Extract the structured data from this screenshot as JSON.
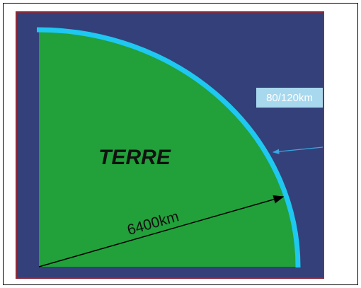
{
  "labels": {
    "planet": "TERRE",
    "radius": "6400km",
    "atmosphere": "80/120km"
  }
}
